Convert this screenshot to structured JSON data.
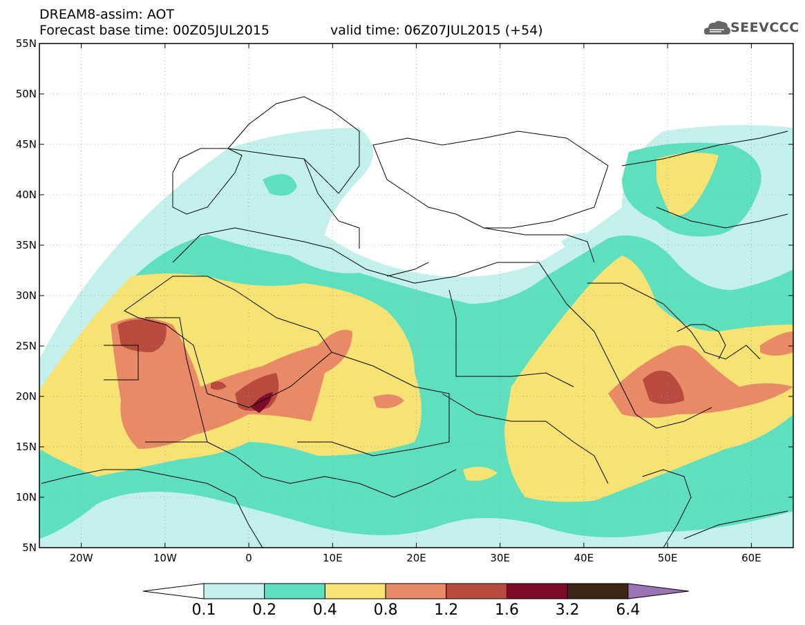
{
  "header": {
    "model_title": "DREAM8-assim: AOT",
    "base_time": "Forecast base time: 00Z05JUL2015",
    "valid_time": "valid time: 06Z07JUL2015 (+54)",
    "logo_text": "SEEVCCC"
  },
  "map": {
    "lon_range": [
      -25,
      65
    ],
    "lat_range": [
      5,
      55
    ],
    "lat_ticks": [
      "5N",
      "10N",
      "15N",
      "20N",
      "25N",
      "30N",
      "35N",
      "40N",
      "45N",
      "50N",
      "55N"
    ],
    "lon_ticks": [
      "20W",
      "10W",
      "0",
      "10E",
      "20E",
      "30E",
      "40E",
      "50E",
      "60E"
    ]
  },
  "colorbar": {
    "levels": [
      "0.1",
      "0.2",
      "0.4",
      "0.8",
      "1.2",
      "1.6",
      "3.2",
      "6.4"
    ],
    "colors": [
      "#ffffff",
      "#c3f0ea",
      "#5ee0be",
      "#f7e373",
      "#e88a66",
      "#b84b3d",
      "#7d0b2a",
      "#3d2614",
      "#9b72b5"
    ]
  },
  "colors": {
    "ocean": "#ffffff",
    "border": "#000000",
    "aot_01_02": "#c3f0ea",
    "aot_02_04": "#5ee0be",
    "aot_04_08": "#f7e373",
    "aot_08_12": "#e88a66",
    "aot_12_16": "#b84b3d",
    "aot_16_32": "#7d0b2a"
  }
}
